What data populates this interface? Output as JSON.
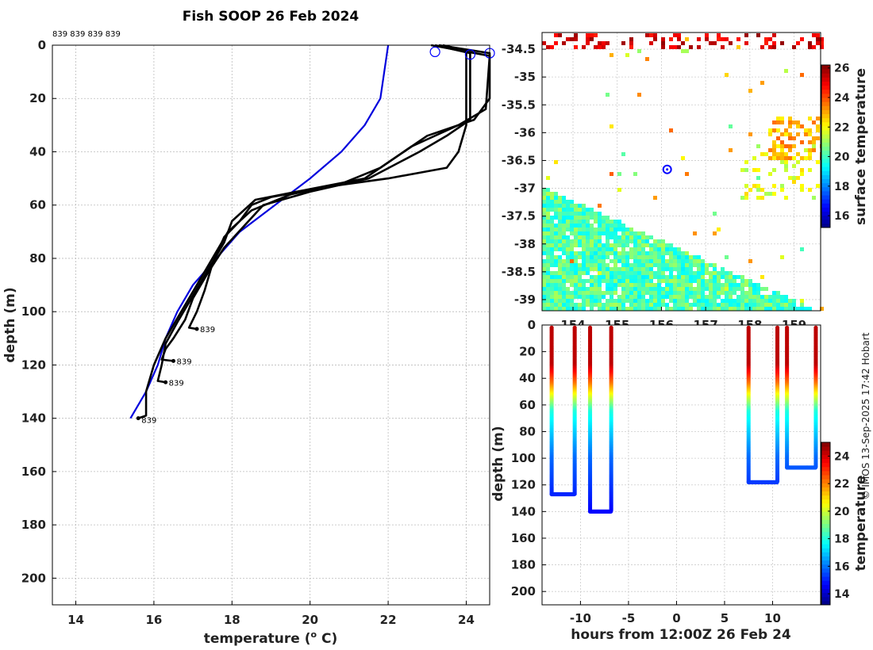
{
  "title": "Fish SOOP 26 Feb 2024",
  "header_ids": "839 839 839 839",
  "credit": "© IMOS 13-Sep-2025 17:42 Hobart",
  "colors": {
    "profile": "#000000",
    "climatology": "#0000dd",
    "marker": "#0000ff"
  },
  "chart_data": [
    {
      "type": "line",
      "name": "profiles",
      "xlabel": "temperature (",
      "xlabel_sup": "o",
      "xlabel_unit": " C)",
      "ylabel": "depth (m)",
      "xlim": [
        13.4,
        24.6
      ],
      "ylim": [
        210,
        0
      ],
      "xticks": [
        14,
        16,
        18,
        20,
        22,
        24
      ],
      "yticks": [
        0,
        20,
        40,
        60,
        80,
        100,
        120,
        140,
        160,
        180,
        200
      ],
      "grid": true,
      "climatology": [
        [
          22.0,
          0
        ],
        [
          21.9,
          10
        ],
        [
          21.8,
          20
        ],
        [
          21.4,
          30
        ],
        [
          20.8,
          40
        ],
        [
          20.0,
          50
        ],
        [
          19.1,
          60
        ],
        [
          18.2,
          70
        ],
        [
          17.6,
          80
        ],
        [
          17.0,
          90
        ],
        [
          16.6,
          100
        ],
        [
          16.3,
          110
        ],
        [
          16.1,
          120
        ],
        [
          15.8,
          130
        ],
        [
          15.4,
          140
        ]
      ],
      "series": [
        {
          "id": "839",
          "points": [
            [
              23.4,
              0
            ],
            [
              24.0,
              2
            ],
            [
              24.0,
              30
            ],
            [
              23.8,
              40
            ],
            [
              23.5,
              46
            ],
            [
              22.0,
              50
            ],
            [
              20.5,
              53
            ],
            [
              19.0,
              57
            ],
            [
              18.5,
              60
            ],
            [
              18.2,
              66
            ],
            [
              17.8,
              72
            ],
            [
              17.5,
              82
            ],
            [
              17.3,
              92
            ],
            [
              17.1,
              100
            ],
            [
              16.9,
              106
            ],
            [
              17.1,
              106.5
            ]
          ],
          "end_label_depth": 106.5,
          "end_label_temp": 17.1
        },
        {
          "id": "839",
          "points": [
            [
              23.2,
              0
            ],
            [
              24.1,
              3
            ],
            [
              24.1,
              28
            ],
            [
              23.5,
              34
            ],
            [
              22.8,
              40
            ],
            [
              21.5,
              50
            ],
            [
              20.0,
              55
            ],
            [
              18.8,
              60
            ],
            [
              18.3,
              68
            ],
            [
              17.8,
              76
            ],
            [
              17.4,
              85
            ],
            [
              17.0,
              95
            ],
            [
              16.8,
              103
            ],
            [
              16.5,
              110
            ],
            [
              16.3,
              114
            ],
            [
              16.2,
              118
            ],
            [
              16.5,
              118.5
            ]
          ],
          "end_label_depth": 118.5,
          "end_label_temp": 16.5
        },
        {
          "id": "839",
          "points": [
            [
              23.3,
              0
            ],
            [
              24.6,
              3
            ],
            [
              24.6,
              20
            ],
            [
              24.2,
              28
            ],
            [
              23.0,
              34
            ],
            [
              22.2,
              42
            ],
            [
              21.4,
              50
            ],
            [
              20.0,
              54
            ],
            [
              18.6,
              58
            ],
            [
              18.0,
              66
            ],
            [
              17.8,
              74
            ],
            [
              17.4,
              84
            ],
            [
              17.0,
              94
            ],
            [
              16.6,
              104
            ],
            [
              16.3,
              112
            ],
            [
              16.2,
              120
            ],
            [
              16.1,
              126
            ],
            [
              16.3,
              126.5
            ]
          ],
          "end_label_depth": 126.5,
          "end_label_temp": 16.3
        },
        {
          "id": "839",
          "points": [
            [
              23.1,
              0
            ],
            [
              24.6,
              4
            ],
            [
              24.5,
              24
            ],
            [
              23.8,
              30
            ],
            [
              22.6,
              38
            ],
            [
              21.8,
              46
            ],
            [
              20.8,
              52
            ],
            [
              19.5,
              56
            ],
            [
              18.5,
              62
            ],
            [
              17.9,
              70
            ],
            [
              17.5,
              80
            ],
            [
              17.1,
              90
            ],
            [
              16.7,
              100
            ],
            [
              16.3,
              110
            ],
            [
              16.0,
              120
            ],
            [
              15.8,
              130
            ],
            [
              15.8,
              139
            ],
            [
              15.6,
              140
            ]
          ],
          "end_label_depth": 140.5,
          "end_label_temp": 15.6
        }
      ],
      "markers": [
        [
          23.2,
          2.5
        ],
        [
          24.1,
          3.5
        ],
        [
          24.6,
          3
        ]
      ]
    },
    {
      "type": "heatmap",
      "name": "surface temperature map",
      "colorbar_label": "surface temperature",
      "xlim": [
        153.3,
        159.6
      ],
      "ylim": [
        -39.2,
        -34.2
      ],
      "xticks": [
        154,
        155,
        156,
        157,
        158,
        159
      ],
      "xtick_labels": [
        "154",
        "155",
        "156",
        "157",
        "158",
        "159"
      ],
      "yticks": [
        -34.5,
        -35,
        -35.5,
        -36,
        -36.5,
        -37,
        -37.5,
        -38,
        -38.5,
        -39
      ],
      "ytick_labels": [
        "-34.5",
        "-35",
        "-35.5",
        "-36",
        "-36.5",
        "-37",
        "-37.5",
        "-38",
        "-38.5",
        "-39"
      ],
      "clim": [
        15.2,
        26.2
      ],
      "colorbar_ticks": [
        16,
        18,
        20,
        22,
        24,
        26
      ],
      "colorbar_tick_labels": [
        "16",
        "18",
        "20",
        "22",
        "24",
        "26"
      ],
      "position_marker": [
        156.13,
        -36.66
      ]
    },
    {
      "type": "scatter",
      "name": "depth vs time",
      "xlabel": "hours from 12:00Z 26 Feb 24",
      "ylabel": "depth (m)",
      "colorbar_label": "temperature",
      "xlim": [
        -14,
        15
      ],
      "ylim": [
        210,
        0
      ],
      "xticks": [
        -10,
        -5,
        0,
        5,
        10
      ],
      "xtick_labels": [
        "-10",
        "-5",
        "0",
        "5",
        "10"
      ],
      "yticks": [
        0,
        20,
        40,
        60,
        80,
        100,
        120,
        140,
        160,
        180,
        200
      ],
      "ytick_labels": [
        "0",
        "20",
        "40",
        "60",
        "80",
        "100",
        "120",
        "140",
        "160",
        "180",
        "200"
      ],
      "clim": [
        13.2,
        25
      ],
      "colorbar_ticks": [
        14,
        16,
        18,
        20,
        22,
        24
      ],
      "colorbar_tick_labels": [
        "14",
        "16",
        "18",
        "20",
        "22",
        "24"
      ],
      "casts": [
        {
          "down": -13.0,
          "up": -10.6,
          "bottom": 127
        },
        {
          "down": -9.0,
          "up": -6.8,
          "bottom": 140
        },
        {
          "down": 7.5,
          "up": 10.5,
          "bottom": 118
        },
        {
          "down": 11.5,
          "up": 14.5,
          "bottom": 107
        }
      ]
    }
  ]
}
